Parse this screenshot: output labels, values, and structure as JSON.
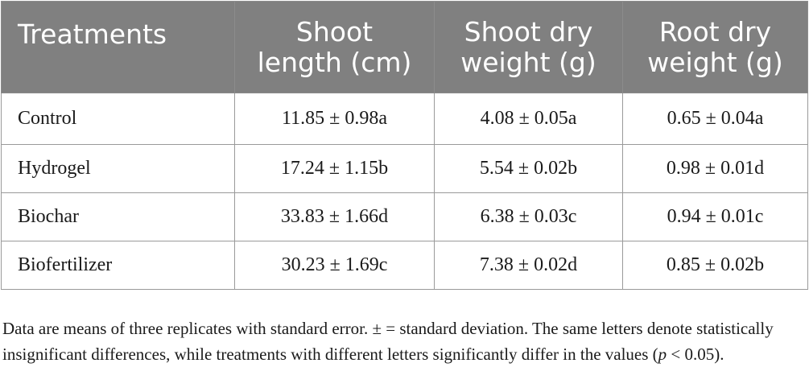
{
  "table": {
    "headers": [
      [
        "Treatments"
      ],
      [
        "Shoot",
        "length (cm)"
      ],
      [
        "Shoot dry",
        "weight (g)"
      ],
      [
        "Root dry",
        "weight (g)"
      ]
    ],
    "rows": [
      [
        "Control",
        "11.85 ± 0.98a",
        "4.08 ± 0.05a",
        "0.65 ± 0.04a"
      ],
      [
        "Hydrogel",
        "17.24 ± 1.15b",
        "5.54 ± 0.02b",
        "0.98 ± 0.01d"
      ],
      [
        "Biochar",
        "33.83 ± 1.66d",
        "6.38 ± 0.03c",
        "0.94 ± 0.01c"
      ],
      [
        "Biofertilizer",
        "30.23 ± 1.69c",
        "7.38 ± 0.02d",
        "0.85 ± 0.02b"
      ]
    ]
  },
  "footnote": {
    "text_before": "Data are means of three replicates with standard error. ± = standard deviation. The same letters denote statistically insignificant differences, while treatments with different letters significantly differ in the values (",
    "p_symbol": "p",
    "text_after": " < 0.05)."
  },
  "colors": {
    "header_bg": "#808080",
    "header_text": "#ffffff",
    "border": "#9a9a9a"
  }
}
